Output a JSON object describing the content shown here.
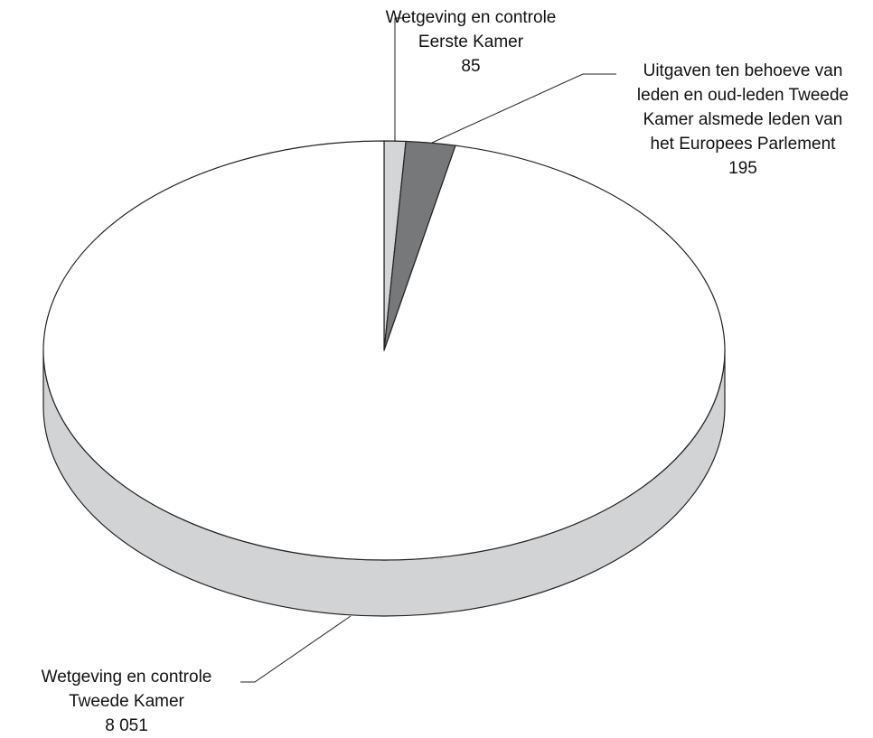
{
  "chart_data": {
    "type": "pie3d",
    "categories": [
      "Wetgeving en controle\nEerste Kamer",
      "Uitgaven ten behoeve van\nleden en oud-leden Tweede\nKamer alsmede leden van\nhet Europees Parlement",
      "Wetgeving en controle\nTweede Kamer"
    ],
    "values": [
      85,
      195,
      8051
    ],
    "value_labels": [
      "85",
      "195",
      "8 051"
    ],
    "colors": [
      "#d4d5d6",
      "#77787a",
      "#ffffff"
    ],
    "side_color": "#d2d3d4"
  }
}
